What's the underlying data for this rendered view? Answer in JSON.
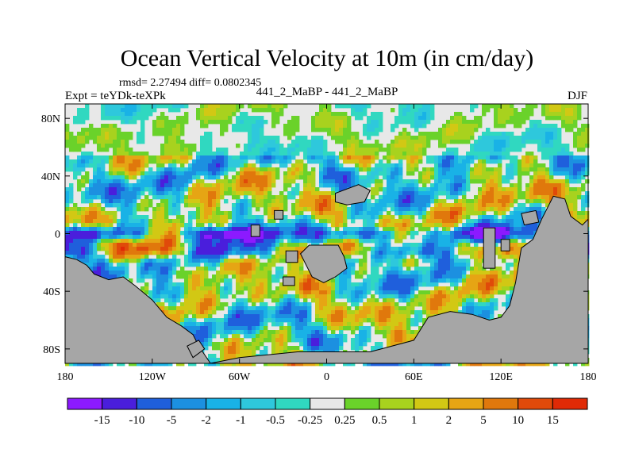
{
  "chart_data": {
    "type": "heatmap",
    "title": "Ocean Vertical Velocity at 10m (in cm/day)",
    "stats": "rmsd= 2.27494 diff= 0.0802345",
    "experiment": "Expt = teYDk-teXPk",
    "subtitle": "441_2_MaBP - 441_2_MaBP",
    "season": "DJF",
    "x_range": [
      -180,
      180
    ],
    "y_range": [
      -90,
      90
    ],
    "x_ticks": [
      {
        "value": -180,
        "label": "180"
      },
      {
        "value": -120,
        "label": "120W"
      },
      {
        "value": -60,
        "label": "60W"
      },
      {
        "value": 0,
        "label": "0"
      },
      {
        "value": 60,
        "label": "60E"
      },
      {
        "value": 120,
        "label": "120E"
      },
      {
        "value": 180,
        "label": "180"
      }
    ],
    "y_ticks": [
      {
        "value": 80,
        "label": "80N"
      },
      {
        "value": 40,
        "label": "40N"
      },
      {
        "value": 0,
        "label": "0"
      },
      {
        "value": -40,
        "label": "40S"
      },
      {
        "value": -80,
        "label": "80S"
      }
    ],
    "colorbar": {
      "labels": [
        "-15",
        "-10",
        "-5",
        "-2",
        "-1",
        "-0.5",
        "-0.25",
        "0.25",
        "0.5",
        "1",
        "2",
        "5",
        "10",
        "15"
      ],
      "colors": [
        "#8c1aff",
        "#4a1edc",
        "#1f5fdc",
        "#1c90e0",
        "#19b2e6",
        "#2ec8dc",
        "#30d8c0",
        "#e8e8e8",
        "#6ad22a",
        "#a8d21e",
        "#d2c814",
        "#e6a514",
        "#e0780c",
        "#e04a0a",
        "#e02a06"
      ]
    },
    "land_color": "#a6a6a6",
    "field_description": "simulated ocean vertical velocity anomaly field"
  }
}
